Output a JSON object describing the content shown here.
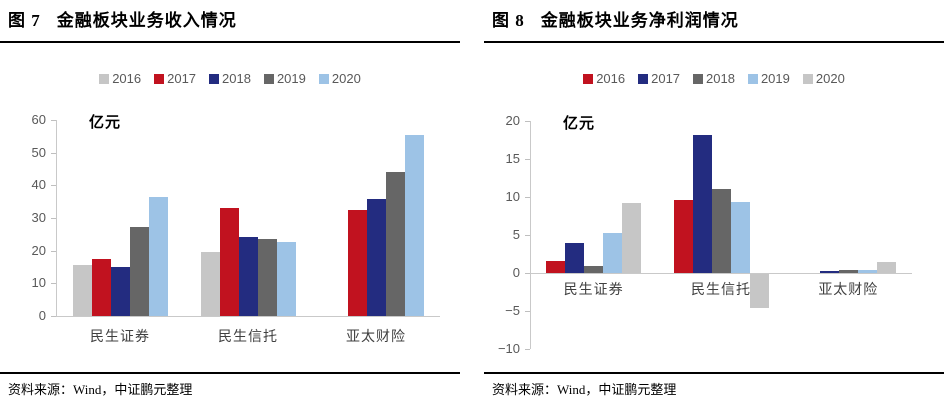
{
  "page": {
    "background": "#ffffff"
  },
  "panels": [
    {
      "title_prefix": "图 7",
      "title": "金融板块业务收入情况",
      "unit_label": "亿元",
      "source": "资料来源：Wind，中证鹏元整理"
    },
    {
      "title_prefix": "图 8",
      "title": "金融板块业务净利润情况",
      "unit_label": "亿元",
      "source": "资料来源：Wind，中证鹏元整理"
    }
  ],
  "colors": {
    "light_gray": "#C6C6C6",
    "red": "#C1121F",
    "navy": "#232C80",
    "dark_gray": "#666666",
    "light_blue": "#9DC3E6",
    "axis": "#C9C9C9",
    "tick_text": "#595959"
  },
  "chart_data": [
    {
      "type": "bar",
      "title": "图 7 金融板块业务收入情况",
      "unit": "亿元",
      "xlabel": "",
      "ylabel": "亿元",
      "categories": [
        "民生证券",
        "民生信托",
        "亚太财险"
      ],
      "series": [
        {
          "name": "2016",
          "color": "#C6C6C6",
          "values": [
            15.5,
            19.5,
            0
          ]
        },
        {
          "name": "2017",
          "color": "#C1121F",
          "values": [
            17.5,
            33.0,
            32.5
          ]
        },
        {
          "name": "2018",
          "color": "#232C80",
          "values": [
            14.9,
            24.3,
            35.7
          ]
        },
        {
          "name": "2019",
          "color": "#666666",
          "values": [
            27.2,
            23.6,
            44.0
          ]
        },
        {
          "name": "2020",
          "color": "#9DC3E6",
          "values": [
            36.4,
            22.8,
            55.3
          ]
        }
      ],
      "ylim": [
        0,
        60
      ],
      "ytick_step": 10,
      "grid": false,
      "legend_position": "top"
    },
    {
      "type": "bar",
      "title": "图 8 金融板块业务净利润情况",
      "unit": "亿元",
      "xlabel": "",
      "ylabel": "亿元",
      "categories": [
        "民生证券",
        "民生信托",
        "亚太财险"
      ],
      "series": [
        {
          "name": "2016",
          "color": "#C1121F",
          "values": [
            1.6,
            9.6,
            0
          ]
        },
        {
          "name": "2017",
          "color": "#232C80",
          "values": [
            3.9,
            18.2,
            0.2
          ]
        },
        {
          "name": "2018",
          "color": "#666666",
          "values": [
            0.9,
            11.1,
            0.35
          ]
        },
        {
          "name": "2019",
          "color": "#9DC3E6",
          "values": [
            5.3,
            9.3,
            0.45
          ]
        },
        {
          "name": "2020",
          "color": "#C6C6C6",
          "values": [
            9.2,
            -4.5,
            1.5
          ]
        }
      ],
      "ylim": [
        -10,
        20
      ],
      "ytick_step": 5,
      "grid": false,
      "legend_position": "top"
    }
  ]
}
